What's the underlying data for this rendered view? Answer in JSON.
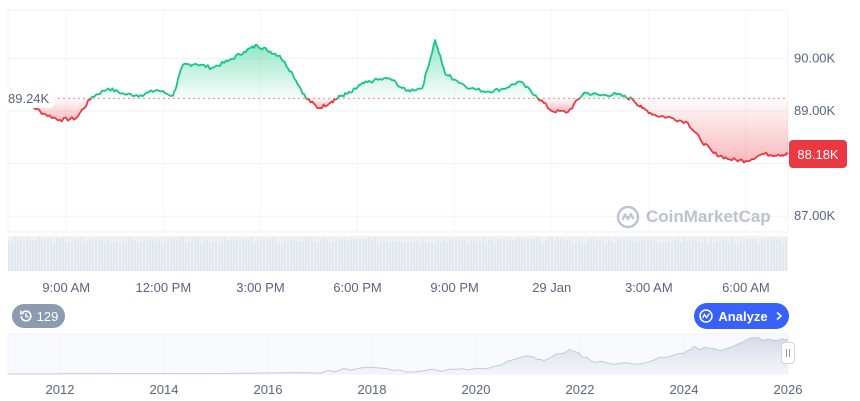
{
  "chart_data": [
    {
      "type": "line",
      "title": "",
      "series_name": "",
      "x_ticks": [
        "9:00 AM",
        "12:00 PM",
        "3:00 PM",
        "6:00 PM",
        "9:00 PM",
        "29 Jan",
        "3:00 AM",
        "6:00 AM"
      ],
      "x_tick_hours": [
        9,
        12,
        15,
        18,
        21,
        24,
        27,
        30
      ],
      "x_range_hours": [
        7.2,
        31.3
      ],
      "y_ticks": [
        "90.00K",
        "89.00K",
        "87.00K"
      ],
      "y_tick_values": [
        90000,
        89000,
        87000
      ],
      "y_range": [
        86700,
        90920
      ],
      "reference_value": 89240,
      "reference_label": "89.24K",
      "current_label": "88.18K",
      "up_color": "#16c784",
      "down_color": "#ea3943",
      "points_hours": [
        7.2,
        7.8,
        8.3,
        8.8,
        9.3,
        9.8,
        10.3,
        10.8,
        11.3,
        11.8,
        12.3,
        12.6,
        13.0,
        13.5,
        14.0,
        14.5,
        14.9,
        15.2,
        15.6,
        16.0,
        16.4,
        16.8,
        17.2,
        17.5,
        17.8,
        18.1,
        18.5,
        19.0,
        19.5,
        20.0,
        20.4,
        20.7,
        21.0,
        21.5,
        22.0,
        22.5,
        23.0,
        23.5,
        24.0,
        24.5,
        25.0,
        25.5,
        26.0,
        26.5,
        26.8,
        27.2,
        27.7,
        28.2,
        28.6,
        29.0,
        29.5,
        30.0,
        30.5,
        31.0,
        31.3
      ],
      "points_values": [
        89240,
        89150,
        88950,
        88830,
        88860,
        89270,
        89430,
        89320,
        89300,
        89400,
        89290,
        89870,
        89900,
        89820,
        89950,
        90130,
        90250,
        90160,
        90050,
        89700,
        89250,
        89050,
        89180,
        89290,
        89350,
        89500,
        89580,
        89620,
        89380,
        89440,
        90350,
        89720,
        89600,
        89430,
        89370,
        89420,
        89560,
        89300,
        89000,
        88980,
        89350,
        89300,
        89320,
        89220,
        89050,
        88920,
        88870,
        88780,
        88450,
        88200,
        88080,
        88050,
        88180,
        88170,
        88180
      ]
    },
    {
      "type": "area",
      "title": "",
      "x_ticks": [
        "2012",
        "2014",
        "2016",
        "2018",
        "2020",
        "2022",
        "2024",
        "2026"
      ],
      "x_tick_years": [
        2012,
        2014,
        2016,
        2018,
        2020,
        2022,
        2024,
        2026
      ],
      "x_range_years": [
        2011.0,
        2026.0
      ],
      "points_years": [
        2011.0,
        2013.0,
        2015.0,
        2017.0,
        2017.9,
        2018.5,
        2019.5,
        2020.2,
        2021.0,
        2021.3,
        2021.8,
        2022.3,
        2023.0,
        2023.8,
        2024.2,
        2024.8,
        2025.3,
        2025.7,
        2026.0
      ],
      "points_values": [
        0,
        0.01,
        0.01,
        0.04,
        0.18,
        0.08,
        0.1,
        0.12,
        0.45,
        0.35,
        0.6,
        0.3,
        0.25,
        0.45,
        0.65,
        0.6,
        0.9,
        0.85,
        0.88
      ]
    }
  ],
  "history_button": {
    "count": "129"
  },
  "analyze_button": {
    "label": "Analyze"
  },
  "watermark": {
    "brand": "CoinMarketCap"
  }
}
